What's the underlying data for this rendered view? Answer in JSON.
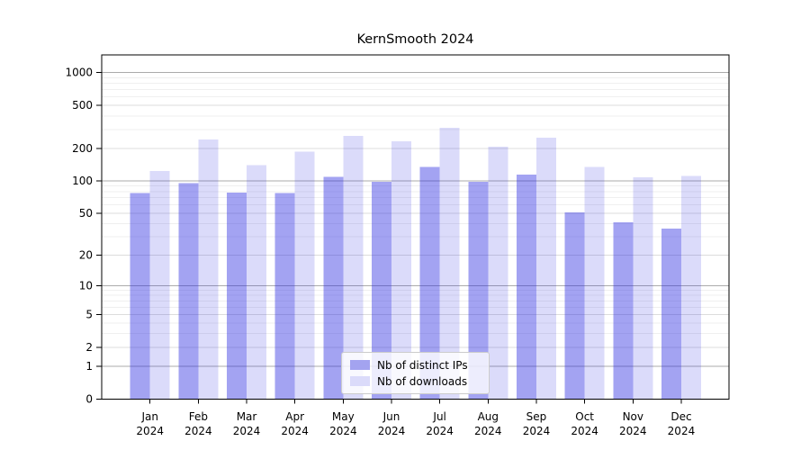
{
  "chart_data": {
    "type": "bar",
    "title": "KernSmooth 2024",
    "year": "2024",
    "categories": [
      "Jan",
      "Feb",
      "Mar",
      "Apr",
      "May",
      "Jun",
      "Jul",
      "Aug",
      "Sep",
      "Oct",
      "Nov",
      "Dec"
    ],
    "series": [
      {
        "name": "Nb of distinct IPs",
        "color": "#a3a3f0",
        "fill": "rgba(42,42,226,0.43)",
        "values": [
          77,
          96,
          78,
          77,
          109,
          98,
          135,
          98,
          115,
          51,
          41,
          36
        ]
      },
      {
        "name": "Nb of downloads",
        "color": "#dbdbfa",
        "fill": "rgba(42,42,226,0.17)",
        "values": [
          124,
          243,
          140,
          188,
          261,
          233,
          312,
          207,
          253,
          135,
          108,
          112
        ]
      }
    ],
    "y_axis": {
      "scale": "log1p",
      "ticks": [
        0,
        1,
        2,
        5,
        10,
        20,
        50,
        100,
        200,
        500,
        1000
      ]
    },
    "x_axis": {
      "tick_label_format": "month over year, two lines"
    },
    "legend": {
      "position": "bottom-center"
    },
    "grid": {
      "major_color": "#ababab",
      "labeled_color": "#dcdcdc",
      "minor_color": "#efefef"
    },
    "axis_color": "#000000"
  }
}
